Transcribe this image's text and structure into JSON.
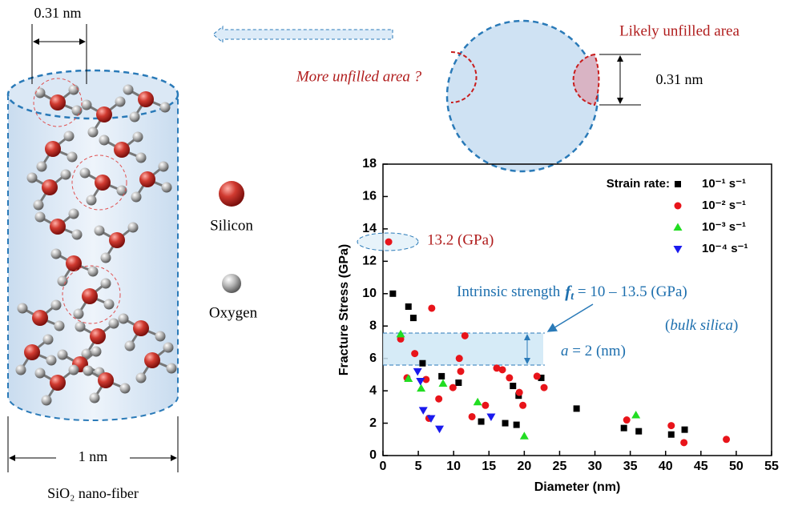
{
  "chart_data": {
    "type": "scatter",
    "x_label": "Diameter (nm)",
    "y_label": "Fracture Stress (GPa)",
    "legend_title": "Strain rate:",
    "legend": "upper right",
    "xlim": [
      0,
      55
    ],
    "xticks": [
      0,
      5,
      10,
      15,
      20,
      25,
      30,
      35,
      40,
      45,
      50,
      55
    ],
    "ylim": [
      0,
      18
    ],
    "yticks": [
      0,
      2,
      4,
      6,
      8,
      10,
      12,
      14,
      16,
      18
    ],
    "series": [
      {
        "name": "10⁻¹ s⁻¹",
        "color": "#000000",
        "marker": "square",
        "x": [
          1.4,
          3.6,
          4.3,
          5.6,
          8.3,
          10.7,
          13.9,
          17.3,
          18.4,
          18.9,
          19.2,
          22.4,
          27.4,
          34.1,
          36.2,
          40.8,
          42.7
        ],
        "values": [
          10.0,
          9.2,
          8.5,
          5.7,
          4.9,
          4.5,
          2.1,
          2.0,
          4.3,
          1.9,
          3.7,
          4.8,
          2.9,
          1.7,
          1.5,
          1.3,
          1.6
        ]
      },
      {
        "name": "10⁻² s⁻¹",
        "color": "#e8141a",
        "marker": "circle",
        "x": [
          0.8,
          2.5,
          3.4,
          4.5,
          6.1,
          6.9,
          6.5,
          7.9,
          9.9,
          10.8,
          11.0,
          11.6,
          12.6,
          14.5,
          16.1,
          16.9,
          17.9,
          19.3,
          19.8,
          21.8,
          22.8,
          34.5,
          40.8,
          42.6,
          48.6
        ],
        "values": [
          13.2,
          7.2,
          4.8,
          6.3,
          4.7,
          9.1,
          2.3,
          3.5,
          4.2,
          6.0,
          5.2,
          7.4,
          2.4,
          3.1,
          5.4,
          5.3,
          4.8,
          3.9,
          3.1,
          4.9,
          4.2,
          2.2,
          1.85,
          0.8,
          1.0
        ]
      },
      {
        "name": "10⁻³ s⁻¹",
        "color": "#22dd22",
        "marker": "triangle-up",
        "x": [
          2.5,
          3.6,
          5.4,
          8.5,
          13.4,
          20.0,
          35.8
        ],
        "values": [
          7.5,
          4.75,
          4.15,
          4.45,
          3.3,
          1.2,
          2.5
        ]
      },
      {
        "name": "10⁻⁴ s⁻¹",
        "color": "#1a1aee",
        "marker": "triangle-down",
        "x": [
          4.9,
          5.3,
          5.7,
          6.8,
          8.0,
          15.3
        ],
        "values": [
          5.2,
          4.6,
          2.8,
          2.3,
          1.65,
          2.4
        ]
      }
    ],
    "annotations": {
      "point": "13.2 (GPa)",
      "strength": [
        "Intrinsic strength",
        "f",
        "t",
        " = 10 – 13.5 (GPa)"
      ],
      "bulk": [
        "(",
        "bulk silica",
        ")"
      ],
      "width": [
        "a",
        " = 2 (nm)"
      ]
    }
  },
  "diagram": {
    "fiber_top_width": "0.31 nm",
    "fiber_diameter": "1 nm",
    "fiber_caption": "SiO₂ nano-fiber",
    "legend_silicon": "Silicon",
    "legend_oxygen": "Oxygen",
    "section_left": "More unfilled area ?",
    "section_right": "Likely unfilled area",
    "section_width": "0.31 nm"
  }
}
